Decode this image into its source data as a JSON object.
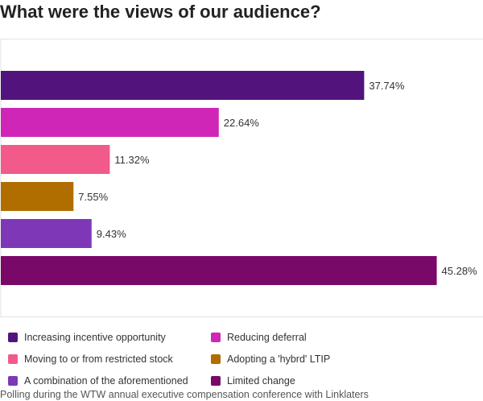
{
  "chart_data": {
    "type": "bar",
    "orientation": "horizontal",
    "title": "What were the views of our audience?",
    "categories": [
      "Increasing incentive opportunity",
      "Reducing deferral",
      "Moving to or from restricted stock",
      "Adopting a 'hybrd' LTIP",
      "A combination of the aforementioned",
      "Limited change"
    ],
    "values": [
      37.74,
      22.64,
      11.32,
      7.55,
      9.43,
      45.28
    ],
    "value_labels": [
      "37.74%",
      "22.64%",
      "11.32%",
      "7.55%",
      "9.43%",
      "45.28%"
    ],
    "colors": [
      "#52137d",
      "#d026b8",
      "#f25a8a",
      "#b06e00",
      "#7e38b7",
      "#7a0868"
    ],
    "xlim": [
      0,
      50
    ],
    "xlabel": "",
    "ylabel": "",
    "grid": false,
    "legend_position": "bottom"
  },
  "footer": "Polling during the WTW annual executive compensation conference with Linklaters"
}
